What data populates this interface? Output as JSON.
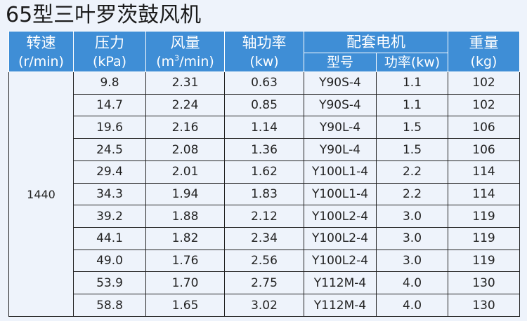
{
  "title": "65型三叶罗茨鼓风机",
  "headers": {
    "speed": {
      "name": "转速",
      "unit": "(r/min)"
    },
    "pressure": {
      "name": "压力",
      "unit": "(kPa)"
    },
    "airflow": {
      "name": "风量",
      "unit_prefix": "(m",
      "unit_sup": "3",
      "unit_suffix": "/min)"
    },
    "shaft_power": {
      "name": "轴功率",
      "unit": "(kw)"
    },
    "motor_group": "配套电机",
    "motor_model": "型号",
    "motor_power": "功率(kw)",
    "weight": {
      "name": "重量",
      "unit": "(kg)"
    }
  },
  "speed_value": "1440",
  "rows": [
    {
      "pressure": "9.8",
      "airflow": "2.31",
      "shaft_power": "0.63",
      "model": "Y90S-4",
      "power": "1.1",
      "weight": "102"
    },
    {
      "pressure": "14.7",
      "airflow": "2.24",
      "shaft_power": "0.85",
      "model": "Y90S-4",
      "power": "1.1",
      "weight": "102"
    },
    {
      "pressure": "19.6",
      "airflow": "2.16",
      "shaft_power": "1.14",
      "model": "Y90L-4",
      "power": "1.5",
      "weight": "106"
    },
    {
      "pressure": "24.5",
      "airflow": "2.08",
      "shaft_power": "1.36",
      "model": "Y90L-4",
      "power": "1.5",
      "weight": "106"
    },
    {
      "pressure": "29.4",
      "airflow": "2.01",
      "shaft_power": "1.62",
      "model": "Y100L1-4",
      "power": "2.2",
      "weight": "114"
    },
    {
      "pressure": "34.3",
      "airflow": "1.94",
      "shaft_power": "1.83",
      "model": "Y100L1-4",
      "power": "2.2",
      "weight": "114"
    },
    {
      "pressure": "39.2",
      "airflow": "1.88",
      "shaft_power": "2.12",
      "model": "Y100L2-4",
      "power": "3.0",
      "weight": "119"
    },
    {
      "pressure": "44.1",
      "airflow": "1.82",
      "shaft_power": "2.34",
      "model": "Y100L2-4",
      "power": "3.0",
      "weight": "119"
    },
    {
      "pressure": "49.0",
      "airflow": "1.76",
      "shaft_power": "2.56",
      "model": "Y100L2-4",
      "power": "3.0",
      "weight": "119"
    },
    {
      "pressure": "53.9",
      "airflow": "1.70",
      "shaft_power": "2.75",
      "model": "Y112M-4",
      "power": "4.0",
      "weight": "130"
    },
    {
      "pressure": "58.8",
      "airflow": "1.65",
      "shaft_power": "3.02",
      "model": "Y112M-4",
      "power": "4.0",
      "weight": "130"
    }
  ],
  "colors": {
    "header_bg": "#3f8ed6",
    "header_text": "#ffffff",
    "page_bg": "#eef3fb"
  }
}
